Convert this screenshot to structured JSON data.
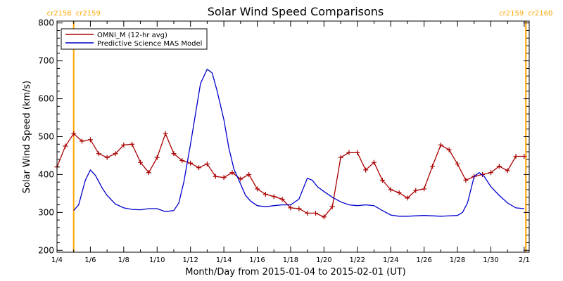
{
  "chart_data": {
    "type": "line",
    "title": "Solar Wind Speed Comparisons",
    "xlabel": "Month/Day from 2015-01-04 to 2015-02-01 (UT)",
    "ylabel": "Solar Wind Speed (km/s)",
    "x_unit": "day of January 2015",
    "xlim": [
      4,
      32.3
    ],
    "ylim": [
      195,
      805
    ],
    "x_ticks": [
      {
        "x": 4,
        "label": "1/4"
      },
      {
        "x": 6,
        "label": "1/6"
      },
      {
        "x": 8,
        "label": "1/8"
      },
      {
        "x": 10,
        "label": "1/10"
      },
      {
        "x": 12,
        "label": "1/12"
      },
      {
        "x": 14,
        "label": "1/14"
      },
      {
        "x": 16,
        "label": "1/16"
      },
      {
        "x": 18,
        "label": "1/18"
      },
      {
        "x": 20,
        "label": "1/20"
      },
      {
        "x": 22,
        "label": "1/22"
      },
      {
        "x": 24,
        "label": "1/24"
      },
      {
        "x": 26,
        "label": "1/26"
      },
      {
        "x": 28,
        "label": "1/28"
      },
      {
        "x": 30,
        "label": "1/30"
      },
      {
        "x": 32,
        "label": "2/1"
      }
    ],
    "y_ticks": [
      200,
      300,
      400,
      500,
      600,
      700,
      800
    ],
    "markers": [
      {
        "x": 5.0,
        "left_label": "cr2158",
        "right_label": "cr2159",
        "color": "#ffa500"
      },
      {
        "x": 32.1,
        "left_label": "cr2159",
        "right_label": "cr2160",
        "color": "#ffa500"
      }
    ],
    "legend_position": "top-left",
    "series": [
      {
        "name": "OMNI_M (12-hr avg)",
        "color": "#aa0000",
        "marker": "plus",
        "x": [
          4.0,
          4.5,
          5.0,
          5.5,
          6.0,
          6.5,
          7.0,
          7.5,
          8.0,
          8.5,
          9.0,
          9.5,
          10.0,
          10.5,
          11.0,
          11.5,
          12.0,
          12.5,
          13.0,
          13.5,
          14.0,
          14.5,
          15.0,
          15.5,
          16.0,
          16.5,
          17.0,
          17.5,
          18.0,
          18.5,
          19.0,
          19.5,
          20.0,
          20.5,
          21.0,
          21.5,
          22.0,
          22.5,
          23.0,
          23.5,
          24.0,
          24.5,
          25.0,
          25.5,
          26.0,
          26.5,
          27.0,
          27.5,
          28.0,
          28.5,
          29.0,
          29.5,
          30.0,
          30.5,
          31.0,
          31.5,
          32.0
        ],
        "values": [
          420,
          475,
          508,
          488,
          492,
          455,
          445,
          455,
          478,
          480,
          432,
          405,
          445,
          508,
          455,
          437,
          430,
          418,
          428,
          395,
          392,
          405,
          388,
          400,
          362,
          348,
          342,
          335,
          312,
          310,
          298,
          298,
          288,
          315,
          445,
          458,
          458,
          412,
          432,
          385,
          360,
          352,
          338,
          358,
          362,
          422,
          478,
          465,
          428,
          385,
          395,
          400,
          405,
          422,
          410,
          448,
          448
        ]
      },
      {
        "name": "Predictive Science MAS Model",
        "color": "#0000cc",
        "x": [
          5.0,
          5.3,
          5.7,
          6.0,
          6.3,
          6.7,
          7.0,
          7.5,
          8.0,
          8.5,
          9.0,
          9.5,
          10.0,
          10.5,
          11.0,
          11.3,
          11.6,
          12.0,
          12.3,
          12.6,
          13.0,
          13.3,
          13.6,
          14.0,
          14.3,
          14.6,
          15.0,
          15.3,
          15.6,
          16.0,
          16.5,
          17.0,
          17.5,
          18.0,
          18.5,
          19.0,
          19.3,
          19.6,
          20.0,
          20.5,
          21.0,
          21.5,
          22.0,
          22.5,
          23.0,
          23.5,
          24.0,
          24.5,
          25.0,
          26.0,
          27.0,
          28.0,
          28.3,
          28.6,
          29.0,
          29.3,
          29.6,
          30.0,
          30.5,
          31.0,
          31.5,
          32.0
        ],
        "values": [
          305,
          320,
          385,
          412,
          398,
          365,
          345,
          322,
          312,
          308,
          307,
          310,
          310,
          302,
          305,
          325,
          380,
          480,
          560,
          640,
          678,
          668,
          620,
          545,
          470,
          415,
          375,
          345,
          330,
          318,
          315,
          318,
          320,
          320,
          335,
          390,
          385,
          368,
          355,
          340,
          328,
          320,
          318,
          320,
          318,
          305,
          293,
          290,
          290,
          292,
          290,
          292,
          300,
          325,
          395,
          405,
          395,
          368,
          345,
          325,
          312,
          310
        ]
      }
    ]
  }
}
